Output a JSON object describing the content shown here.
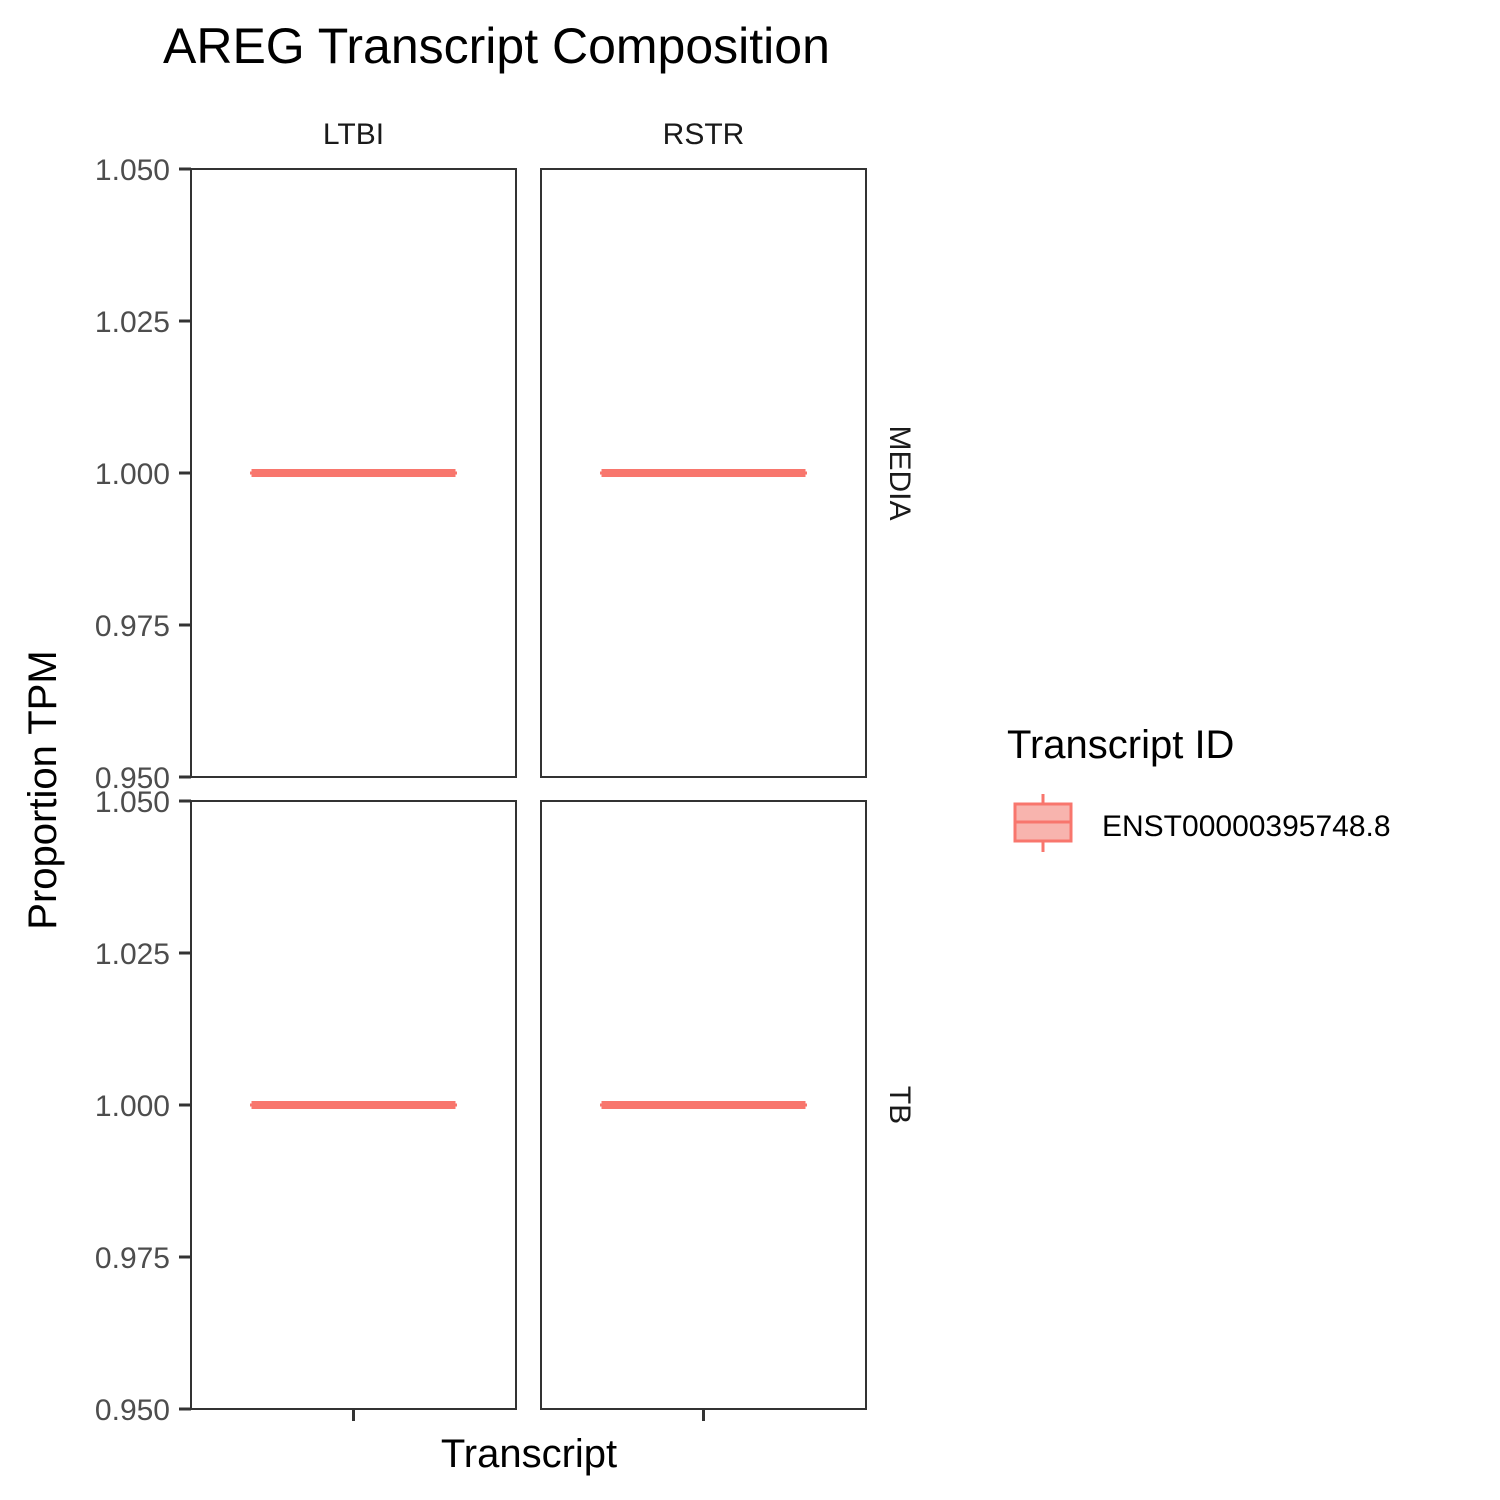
{
  "chart_data": {
    "type": "boxplot",
    "title": "AREG Transcript Composition",
    "xlabel": "Transcript",
    "ylabel": "Proportion TPM",
    "ylim": [
      0.95,
      1.05
    ],
    "yticks": [
      "0.950",
      "0.975",
      "1.000",
      "1.025",
      "1.050"
    ],
    "ytick_values": [
      0.95,
      0.975,
      1.0,
      1.025,
      1.05
    ],
    "facet_columns": [
      "LTBI",
      "RSTR"
    ],
    "facet_rows": [
      "MEDIA",
      "TB"
    ],
    "legend": {
      "title": "Transcript ID",
      "entries": [
        "ENST00000395748.8"
      ],
      "placement": "right"
    },
    "color": "#f8766d",
    "fill": "#f8b4ae",
    "grid": false,
    "series": [
      {
        "name": "ENST00000395748.8",
        "column": "LTBI",
        "row": "MEDIA",
        "median": 1.0,
        "q1": 1.0,
        "q3": 1.0,
        "min": 1.0,
        "max": 1.0
      },
      {
        "name": "ENST00000395748.8",
        "column": "RSTR",
        "row": "MEDIA",
        "median": 1.0,
        "q1": 1.0,
        "q3": 1.0,
        "min": 1.0,
        "max": 1.0
      },
      {
        "name": "ENST00000395748.8",
        "column": "LTBI",
        "row": "TB",
        "median": 1.0,
        "q1": 1.0,
        "q3": 1.0,
        "min": 1.0,
        "max": 1.0
      },
      {
        "name": "ENST00000395748.8",
        "column": "RSTR",
        "row": "TB",
        "median": 1.0,
        "q1": 1.0,
        "q3": 1.0,
        "min": 1.0,
        "max": 1.0
      }
    ]
  }
}
